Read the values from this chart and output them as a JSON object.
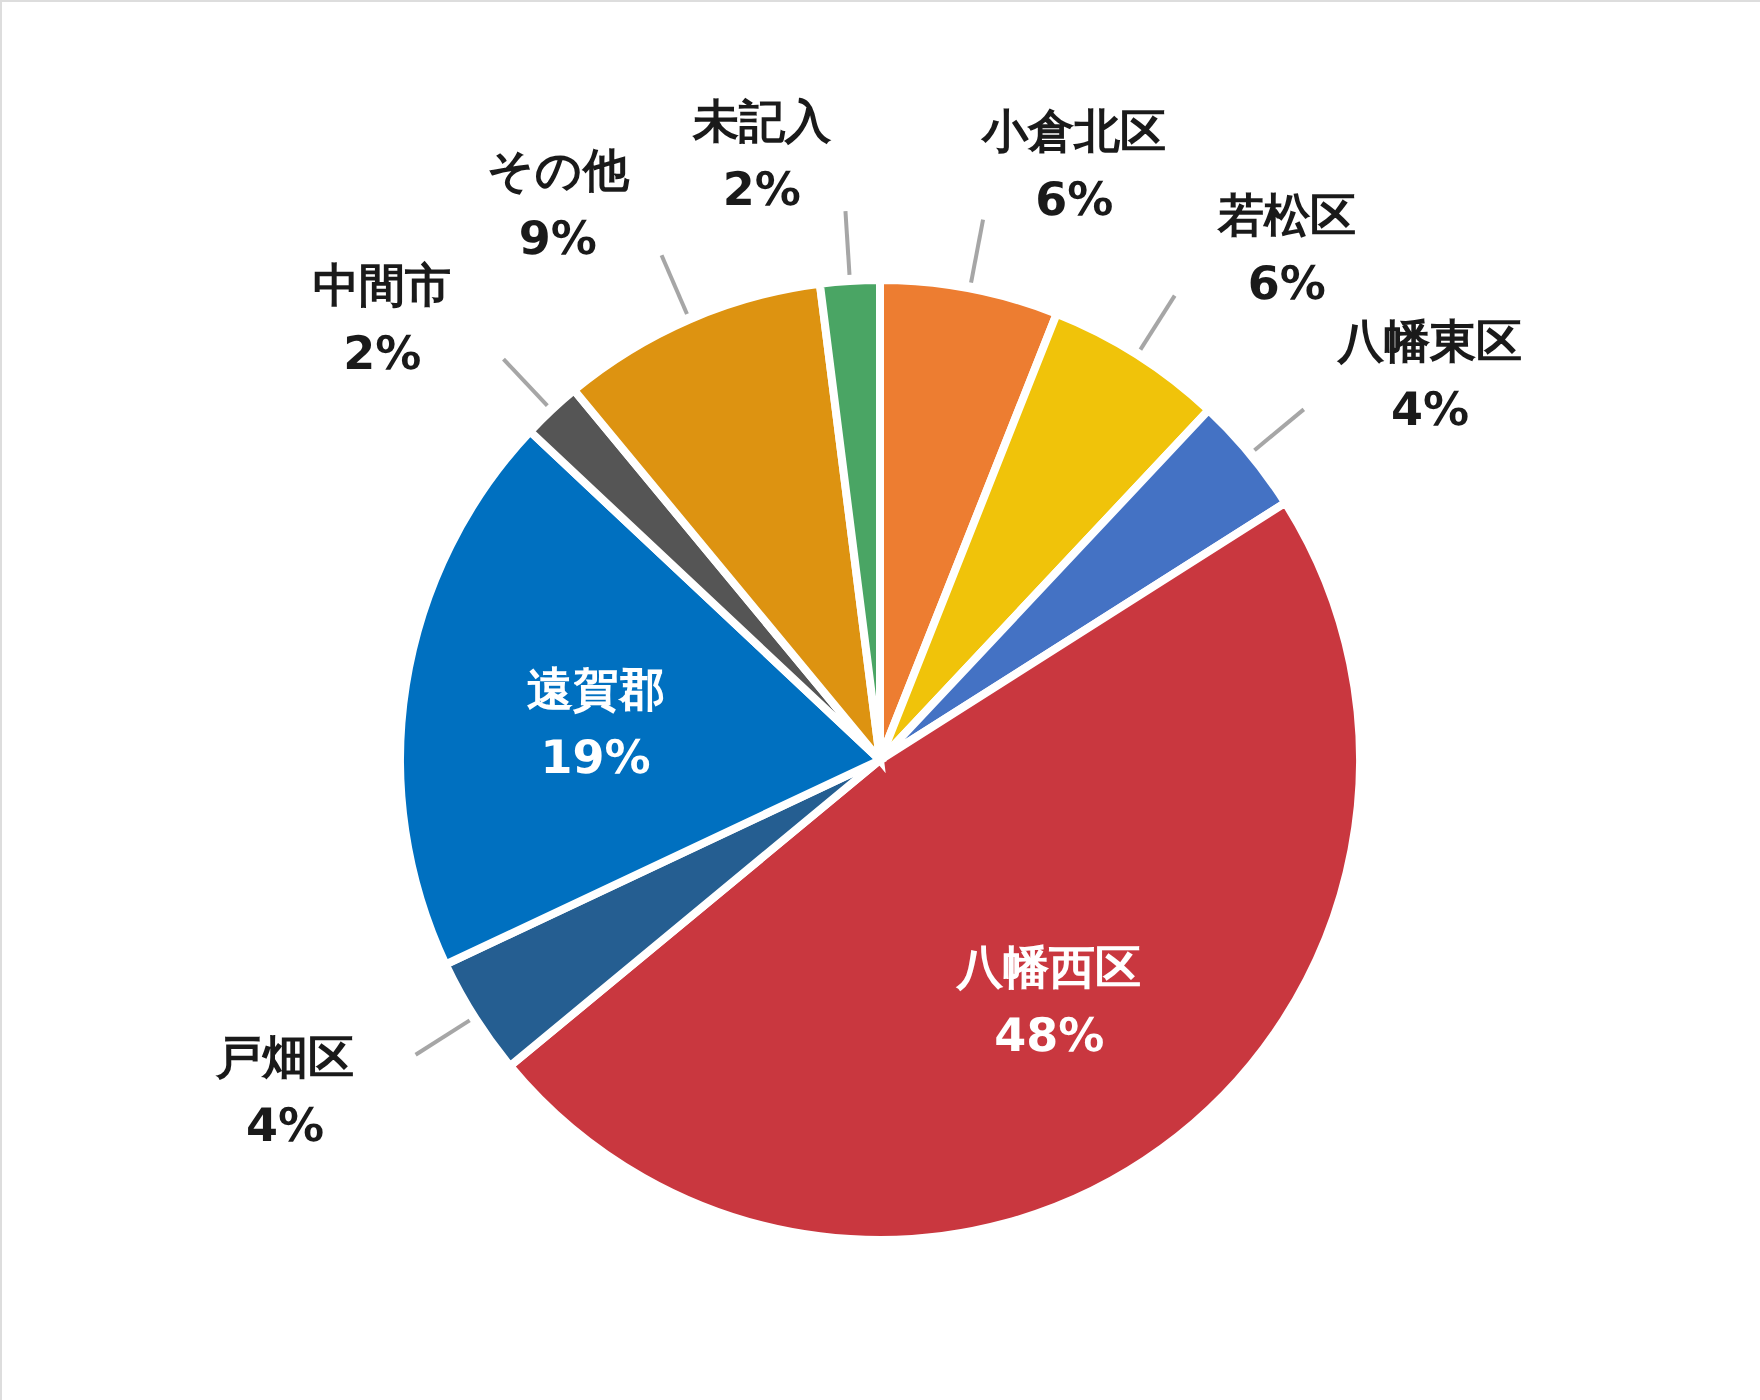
{
  "chart_data": {
    "type": "pie",
    "categories": [
      "小倉北区",
      "若松区",
      "八幡東区",
      "八幡西区",
      "戸畑区",
      "遠賀郡",
      "中間市",
      "その他",
      "未記入"
    ],
    "values": [
      6,
      6,
      4,
      48,
      4,
      19,
      2,
      9,
      2
    ],
    "value_labels": [
      "6%",
      "6%",
      "4%",
      "48%",
      "4%",
      "19%",
      "2%",
      "9%",
      "2%"
    ],
    "colors": [
      "#ed7d31",
      "#f0c30a",
      "#4472c4",
      "#c9373f",
      "#255e91",
      "#0070c0",
      "#555555",
      "#dd9311",
      "#4aa564"
    ]
  }
}
